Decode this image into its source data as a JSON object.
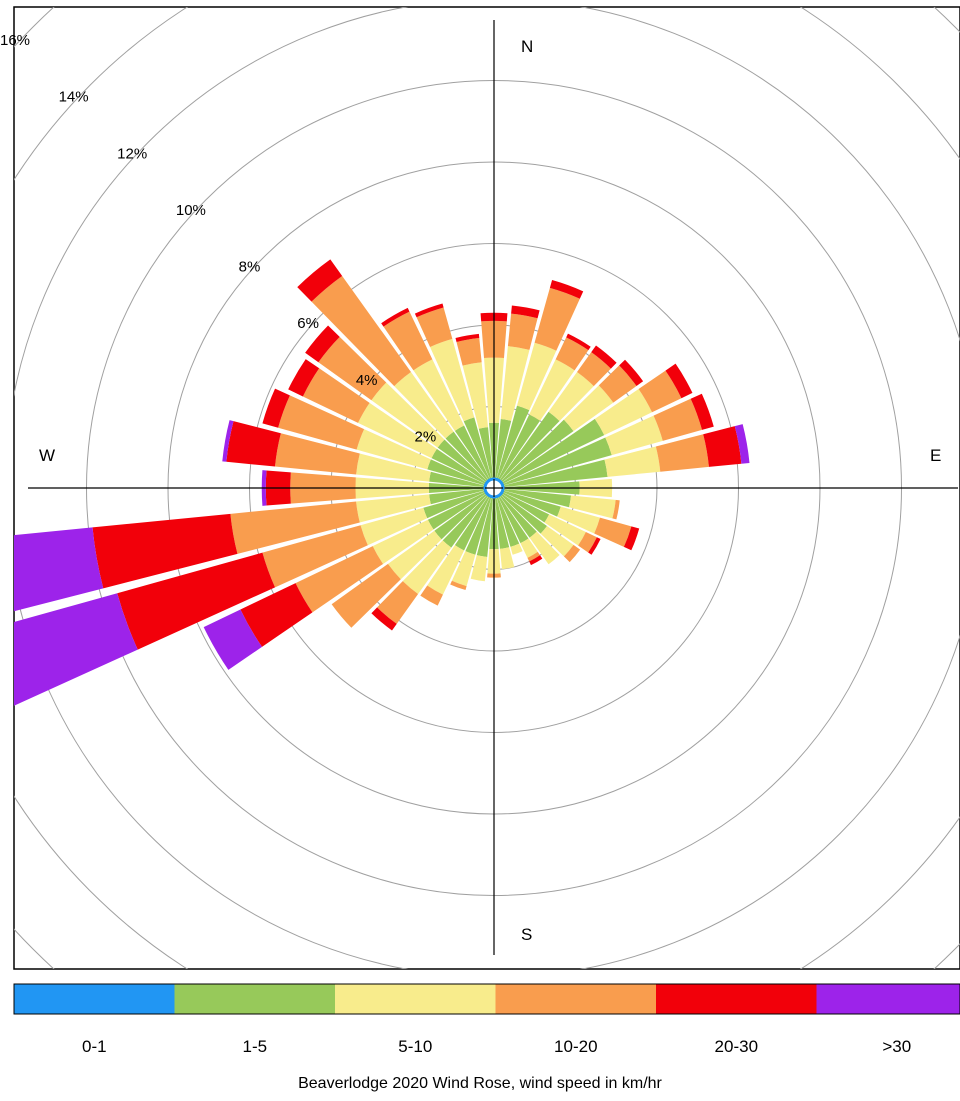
{
  "chart_data": {
    "type": "wind-rose",
    "title": "Beaverlodge 2020 Wind Rose, wind speed in km/hr",
    "radial_unit": "%",
    "radial_max": 16,
    "ring_labels": [
      "2%",
      "4%",
      "6%",
      "8%",
      "10%",
      "12%",
      "14%",
      "16%"
    ],
    "directions": {
      "n": "N",
      "e": "E",
      "s": "S",
      "w": "W"
    },
    "speed_bins": [
      "0-1",
      "1-5",
      "5-10",
      "10-20",
      "20-30",
      ">30"
    ],
    "bin_colors": [
      "#2196f3",
      "#97c95a",
      "#f8ec8c",
      "#f99d4e",
      "#f2000a",
      "#9d23ea"
    ],
    "sectors": [
      {
        "dir": 0,
        "values": [
          0.2,
          1.4,
          1.6,
          0.9,
          0.2,
          0
        ]
      },
      {
        "dir": 10,
        "values": [
          0.2,
          1.5,
          1.8,
          0.8,
          0.2,
          0
        ]
      },
      {
        "dir": 20,
        "values": [
          0.2,
          1.9,
          1.6,
          1.4,
          0.2,
          0
        ]
      },
      {
        "dir": 30,
        "values": [
          0.2,
          1.8,
          1.5,
          0.6,
          0.1,
          0
        ]
      },
      {
        "dir": 40,
        "values": [
          0.2,
          2.1,
          1.2,
          0.6,
          0.2,
          0
        ]
      },
      {
        "dir": 50,
        "values": [
          0.2,
          2.2,
          1.2,
          0.7,
          0.2,
          0
        ]
      },
      {
        "dir": 60,
        "values": [
          0.2,
          2.8,
          1.3,
          0.8,
          0.3,
          0
        ]
      },
      {
        "dir": 70,
        "values": [
          0.2,
          2.8,
          1.3,
          1.0,
          0.3,
          0
        ]
      },
      {
        "dir": 80,
        "values": [
          0.2,
          2.6,
          1.3,
          1.2,
          0.8,
          0.2
        ]
      },
      {
        "dir": 90,
        "values": [
          0.2,
          1.9,
          0.8,
          0,
          0,
          0
        ]
      },
      {
        "dir": 100,
        "values": [
          0.2,
          1.7,
          1.1,
          0.1,
          0,
          0
        ]
      },
      {
        "dir": 110,
        "values": [
          0.2,
          1.5,
          1.0,
          0.8,
          0.2,
          0
        ]
      },
      {
        "dir": 120,
        "values": [
          0.2,
          1.3,
          1.0,
          0.3,
          0.1,
          0
        ]
      },
      {
        "dir": 130,
        "values": [
          0.2,
          1.4,
          0.8,
          0.2,
          0,
          0
        ]
      },
      {
        "dir": 140,
        "values": [
          0.2,
          1.3,
          0.8,
          0,
          0,
          0
        ]
      },
      {
        "dir": 150,
        "values": [
          0.2,
          1.3,
          0.4,
          0.1,
          0.1,
          0
        ]
      },
      {
        "dir": 160,
        "values": [
          0.2,
          1.3,
          0.2,
          0,
          0,
          0
        ]
      },
      {
        "dir": 170,
        "values": [
          0.2,
          1.3,
          0.5,
          0,
          0,
          0
        ]
      },
      {
        "dir": 180,
        "values": [
          0.2,
          1.3,
          0.6,
          0.1,
          0,
          0
        ]
      },
      {
        "dir": 190,
        "values": [
          0.2,
          1.5,
          0.6,
          0,
          0,
          0
        ]
      },
      {
        "dir": 200,
        "values": [
          0.2,
          1.5,
          0.8,
          0.1,
          0,
          0
        ]
      },
      {
        "dir": 210,
        "values": [
          0.2,
          1.5,
          1.2,
          0.3,
          0,
          0
        ]
      },
      {
        "dir": 220,
        "values": [
          0.2,
          1.6,
          1.4,
          0.9,
          0.2,
          0
        ]
      },
      {
        "dir": 230,
        "values": [
          0.2,
          1.6,
          1.4,
          1.7,
          0,
          0
        ]
      },
      {
        "dir": 240,
        "values": [
          0.2,
          1.6,
          1.5,
          2.1,
          1.5,
          1.0
        ]
      },
      {
        "dir": 250,
        "values": [
          0.2,
          1.6,
          1.6,
          2.5,
          3.7,
          4.6
        ]
      },
      {
        "dir": 260,
        "values": [
          0.2,
          1.4,
          1.8,
          3.1,
          3.4,
          3.0
        ]
      },
      {
        "dir": 270,
        "values": [
          0.2,
          1.4,
          1.8,
          1.6,
          0.6,
          0.1
        ]
      },
      {
        "dir": 280,
        "values": [
          0.2,
          1.4,
          1.8,
          2.0,
          1.2,
          0.1
        ]
      },
      {
        "dir": 290,
        "values": [
          0.2,
          1.5,
          1.8,
          2.0,
          0.4,
          0
        ]
      },
      {
        "dir": 300,
        "values": [
          0.2,
          1.5,
          2.0,
          1.5,
          0.4,
          0
        ]
      },
      {
        "dir": 310,
        "values": [
          0.2,
          1.5,
          2.0,
          1.6,
          0.4,
          0
        ]
      },
      {
        "dir": 320,
        "values": [
          0.2,
          1.5,
          1.8,
          2.9,
          0.5,
          0
        ]
      },
      {
        "dir": 330,
        "values": [
          0.2,
          1.5,
          1.8,
          1.3,
          0.1,
          0
        ]
      },
      {
        "dir": 340,
        "values": [
          0.2,
          1.6,
          2.0,
          0.8,
          0.1,
          0
        ]
      },
      {
        "dir": 350,
        "values": [
          0.2,
          1.3,
          1.6,
          0.6,
          0.1,
          0
        ]
      }
    ],
    "grid": true,
    "legend_placement": "bottom"
  }
}
